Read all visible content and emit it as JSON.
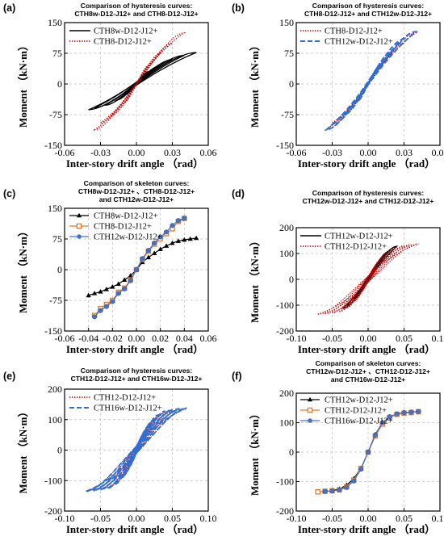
{
  "figure": {
    "panels": [
      {
        "id": "a",
        "label": "(a)",
        "title": [
          "Comparison of hysteresis curves:",
          "CTH8w-D12-J12+ and CTH8-D12-J12+"
        ]
      },
      {
        "id": "b",
        "label": "(b)",
        "title": [
          "Comparison of hysteresis curves:",
          "CTH8-D12-J12+ and CTH12w-D12-J12+"
        ]
      },
      {
        "id": "c",
        "label": "(c)",
        "title": [
          "Comparison of skeleton curves:",
          "CTH8w-D12-J12+ 、CTH8-D12-J12+",
          "and CTH12w-D12-J12+"
        ]
      },
      {
        "id": "d",
        "label": "(d)",
        "title": [
          "Comparison of hysteresis curves:",
          "CTH12w-D12-J12+ and CTH12-D12-J12+"
        ]
      },
      {
        "id": "e",
        "label": "(e)",
        "title": [
          "Comparison of hysteresis curves:",
          "CTH12-D12-J12+ and CTH16w-D12-J12+"
        ]
      },
      {
        "id": "f",
        "label": "(f)",
        "title": [
          "Comparison of skeleton curves:",
          "CTH12w-D12-J12+ 、CTH12-D12-J12+",
          "and CTH16w-D12-J12+"
        ]
      }
    ]
  },
  "chart_data": [
    {
      "panel": "a",
      "type": "line",
      "xlabel": "Inter-story drift angle （rad）",
      "ylabel": "Moment （kN·m）",
      "xlim": [
        -0.06,
        0.06
      ],
      "ylim": [
        -150,
        150
      ],
      "xticks": [
        -0.06,
        -0.03,
        0.0,
        0.03,
        0.06
      ],
      "xtick_labels": [
        "-0.06",
        "-0.03",
        "0.00",
        "0.03",
        "0.06"
      ],
      "yticks": [
        -150,
        -75,
        0,
        75,
        150
      ],
      "ytick_labels": [
        "-150",
        "-75",
        "0",
        "75",
        "150"
      ],
      "grid": true,
      "legend_position": "top-left",
      "series": [
        {
          "name": "CTH8w-D12-J12+",
          "color": "#000000",
          "style": "solid",
          "kind": "hysteresis",
          "loops": [
            {
              "x_max": 0.01,
              "x_min": -0.009,
              "y_max": 30,
              "y_min": -25,
              "pinch": 0.3
            },
            {
              "x_max": 0.02,
              "x_min": -0.017,
              "y_max": 45,
              "y_min": -40,
              "pinch": 0.3
            },
            {
              "x_max": 0.03,
              "x_min": -0.026,
              "y_max": 60,
              "y_min": -52,
              "pinch": 0.3
            },
            {
              "x_max": 0.04,
              "x_min": -0.035,
              "y_max": 70,
              "y_min": -58,
              "pinch": 0.3
            },
            {
              "x_max": 0.05,
              "x_min": -0.04,
              "y_max": 77,
              "y_min": -63,
              "pinch": 0.3
            }
          ]
        },
        {
          "name": "CTH8-D12-J12+",
          "color": "#c00000",
          "style": "dotted",
          "kind": "hysteresis",
          "loops": [
            {
              "x_max": 0.01,
              "x_min": -0.01,
              "y_max": 45,
              "y_min": -45,
              "pinch": 0.45
            },
            {
              "x_max": 0.02,
              "x_min": -0.02,
              "y_max": 75,
              "y_min": -75,
              "pinch": 0.45
            },
            {
              "x_max": 0.03,
              "x_min": -0.03,
              "y_max": 100,
              "y_min": -95,
              "pinch": 0.45
            },
            {
              "x_max": 0.04,
              "x_min": -0.035,
              "y_max": 125,
              "y_min": -112,
              "pinch": 0.45
            }
          ]
        }
      ]
    },
    {
      "panel": "b",
      "type": "line",
      "xlabel": "Inter-story drift angle （rad）",
      "ylabel": "Moment （kN·m）",
      "xlim": [
        -0.06,
        0.06
      ],
      "ylim": [
        -150,
        150
      ],
      "xticks": [
        -0.06,
        -0.03,
        0.0,
        0.03,
        0.06
      ],
      "xtick_labels": [
        "-0.06",
        "-0.03",
        "0.00",
        "0.03",
        "0.06"
      ],
      "yticks": [
        -150,
        -75,
        0,
        75,
        150
      ],
      "ytick_labels": [
        "-150",
        "-75",
        "0",
        "75",
        "150"
      ],
      "grid": true,
      "legend_position": "top-left",
      "series": [
        {
          "name": "CTH8-D12-J12+",
          "color": "#c00000",
          "style": "dotted",
          "kind": "hysteresis",
          "loops": [
            {
              "x_max": 0.01,
              "x_min": -0.01,
              "y_max": 45,
              "y_min": -45,
              "pinch": 0.45
            },
            {
              "x_max": 0.02,
              "x_min": -0.02,
              "y_max": 75,
              "y_min": -75,
              "pinch": 0.45
            },
            {
              "x_max": 0.03,
              "x_min": -0.03,
              "y_max": 100,
              "y_min": -95,
              "pinch": 0.45
            },
            {
              "x_max": 0.04,
              "x_min": -0.035,
              "y_max": 125,
              "y_min": -112,
              "pinch": 0.45
            }
          ]
        },
        {
          "name": "CTH12w-D12-J12+",
          "color": "#2e6fd6",
          "style": "dashed",
          "kind": "hysteresis",
          "loops": [
            {
              "x_max": 0.01,
              "x_min": -0.01,
              "y_max": 45,
              "y_min": -45,
              "pinch": 0.35
            },
            {
              "x_max": 0.02,
              "x_min": -0.02,
              "y_max": 80,
              "y_min": -75,
              "pinch": 0.35
            },
            {
              "x_max": 0.03,
              "x_min": -0.03,
              "y_max": 110,
              "y_min": -100,
              "pinch": 0.35
            },
            {
              "x_max": 0.04,
              "x_min": -0.035,
              "y_max": 128,
              "y_min": -112,
              "pinch": 0.35
            }
          ]
        }
      ]
    },
    {
      "panel": "c",
      "type": "line",
      "xlabel": "Inter-story drift angle （rad）",
      "ylabel": "Moment （kN·m）",
      "xlim": [
        -0.06,
        0.06
      ],
      "ylim": [
        -150,
        150
      ],
      "xticks": [
        -0.06,
        -0.04,
        -0.02,
        0.0,
        0.02,
        0.04,
        0.06
      ],
      "xtick_labels": [
        "-0.06",
        "-0.04",
        "-0.02",
        "0.00",
        "0.02",
        "0.04",
        "0.06"
      ],
      "yticks": [
        -150,
        -75,
        0,
        75,
        150
      ],
      "ytick_labels": [
        "-150",
        "-75",
        "0",
        "75",
        "150"
      ],
      "grid": true,
      "legend_position": "top-left",
      "series": [
        {
          "name": "CTH8w-D12-J12+",
          "color": "#000000",
          "marker": "triangle",
          "kind": "skeleton",
          "x": [
            -0.04,
            -0.035,
            -0.03,
            -0.025,
            -0.02,
            -0.015,
            -0.01,
            -0.005,
            0.0,
            0.005,
            0.01,
            0.015,
            0.02,
            0.025,
            0.03,
            0.035,
            0.04,
            0.045,
            0.05
          ],
          "y": [
            -63,
            -58,
            -54,
            -48,
            -42,
            -35,
            -25,
            -15,
            0,
            18,
            30,
            40,
            50,
            58,
            65,
            70,
            73,
            75,
            77
          ]
        },
        {
          "name": "CTH8-D12-J12+",
          "color": "#e07a2e",
          "marker": "square",
          "kind": "skeleton",
          "x": [
            -0.035,
            -0.03,
            -0.025,
            -0.02,
            -0.015,
            -0.01,
            -0.005,
            0.0,
            0.005,
            0.01,
            0.015,
            0.02,
            0.025,
            0.03,
            0.035,
            0.04
          ],
          "y": [
            -112,
            -95,
            -85,
            -75,
            -55,
            -45,
            -25,
            0,
            25,
            45,
            62,
            75,
            88,
            100,
            118,
            125
          ]
        },
        {
          "name": "CTH12w-D12-J12+",
          "color": "#4472c4",
          "marker": "circle",
          "kind": "skeleton",
          "x": [
            -0.035,
            -0.03,
            -0.025,
            -0.02,
            -0.015,
            -0.01,
            -0.005,
            0.0,
            0.005,
            0.01,
            0.015,
            0.02,
            0.025,
            0.03,
            0.035,
            0.04
          ],
          "y": [
            -115,
            -100,
            -90,
            -78,
            -58,
            -47,
            -27,
            0,
            27,
            47,
            65,
            80,
            92,
            108,
            120,
            126
          ]
        }
      ]
    },
    {
      "panel": "d",
      "type": "line",
      "xlabel": "Inter-story drift angle （rad）",
      "ylabel": "Moment （kN·m）",
      "xlim": [
        -0.1,
        0.1
      ],
      "ylim": [
        -200,
        200
      ],
      "xticks": [
        -0.1,
        -0.05,
        0.0,
        0.05,
        0.1
      ],
      "xtick_labels": [
        "-0.10",
        "-0.05",
        "0.00",
        "0.05",
        "0.10"
      ],
      "yticks": [
        -200,
        -100,
        0,
        100,
        200
      ],
      "ytick_labels": [
        "-200",
        "-100",
        "0",
        "100",
        "200"
      ],
      "grid": true,
      "legend_position": "top-left",
      "series": [
        {
          "name": "CTH12w-D12-J12+",
          "color": "#000000",
          "style": "solid",
          "kind": "hysteresis",
          "loops": [
            {
              "x_max": 0.01,
              "x_min": -0.01,
              "y_max": 45,
              "y_min": -45,
              "pinch": 0.3
            },
            {
              "x_max": 0.02,
              "x_min": -0.02,
              "y_max": 80,
              "y_min": -75,
              "pinch": 0.3
            },
            {
              "x_max": 0.03,
              "x_min": -0.03,
              "y_max": 110,
              "y_min": -100,
              "pinch": 0.3
            },
            {
              "x_max": 0.04,
              "x_min": -0.035,
              "y_max": 128,
              "y_min": -112,
              "pinch": 0.3
            }
          ]
        },
        {
          "name": "CTH12-D12-J12+",
          "color": "#c00000",
          "style": "dotted",
          "kind": "hysteresis",
          "loops": [
            {
              "x_max": 0.01,
              "x_min": -0.01,
              "y_max": 50,
              "y_min": -50,
              "pinch": 0.6
            },
            {
              "x_max": 0.02,
              "x_min": -0.02,
              "y_max": 85,
              "y_min": -85,
              "pinch": 0.6
            },
            {
              "x_max": 0.03,
              "x_min": -0.03,
              "y_max": 110,
              "y_min": -110,
              "pinch": 0.6
            },
            {
              "x_max": 0.04,
              "x_min": -0.04,
              "y_max": 125,
              "y_min": -125,
              "pinch": 0.6
            },
            {
              "x_max": 0.05,
              "x_min": -0.05,
              "y_max": 130,
              "y_min": -130,
              "pinch": 0.6
            },
            {
              "x_max": 0.06,
              "x_min": -0.06,
              "y_max": 135,
              "y_min": -133,
              "pinch": 0.6
            },
            {
              "x_max": 0.07,
              "x_min": -0.07,
              "y_max": 137,
              "y_min": -135,
              "pinch": 0.6
            }
          ]
        }
      ]
    },
    {
      "panel": "e",
      "type": "line",
      "xlabel": "Inter-story drift angle （rad）",
      "ylabel": "Moment （kN·m）",
      "xlim": [
        -0.1,
        0.1
      ],
      "ylim": [
        -200,
        200
      ],
      "xticks": [
        -0.1,
        -0.05,
        0.0,
        0.05,
        0.1
      ],
      "xtick_labels": [
        "-0.10",
        "-0.05",
        "0.00",
        "0.05",
        "0.10"
      ],
      "yticks": [
        -200,
        -100,
        0,
        100,
        200
      ],
      "ytick_labels": [
        "-200",
        "-100",
        "0",
        "100",
        "200"
      ],
      "grid": true,
      "legend_position": "top-left",
      "series": [
        {
          "name": "CTH12-D12-J12+",
          "color": "#c00000",
          "style": "dotted",
          "kind": "hysteresis",
          "loops": [
            {
              "x_max": 0.01,
              "x_min": -0.01,
              "y_max": 50,
              "y_min": -50,
              "pinch": 0.6
            },
            {
              "x_max": 0.02,
              "x_min": -0.02,
              "y_max": 85,
              "y_min": -85,
              "pinch": 0.6
            },
            {
              "x_max": 0.03,
              "x_min": -0.03,
              "y_max": 110,
              "y_min": -110,
              "pinch": 0.6
            },
            {
              "x_max": 0.04,
              "x_min": -0.04,
              "y_max": 125,
              "y_min": -125,
              "pinch": 0.6
            },
            {
              "x_max": 0.05,
              "x_min": -0.05,
              "y_max": 130,
              "y_min": -130,
              "pinch": 0.6
            },
            {
              "x_max": 0.06,
              "x_min": -0.06,
              "y_max": 135,
              "y_min": -133,
              "pinch": 0.6
            },
            {
              "x_max": 0.07,
              "x_min": -0.07,
              "y_max": 137,
              "y_min": -135,
              "pinch": 0.6
            }
          ]
        },
        {
          "name": "CTH16w-D12-J12+",
          "color": "#2e6fd6",
          "style": "dashed",
          "kind": "hysteresis",
          "loops": [
            {
              "x_max": 0.01,
              "x_min": -0.01,
              "y_max": 55,
              "y_min": -55,
              "pinch": 0.6
            },
            {
              "x_max": 0.02,
              "x_min": -0.02,
              "y_max": 90,
              "y_min": -90,
              "pinch": 0.6
            },
            {
              "x_max": 0.03,
              "x_min": -0.03,
              "y_max": 115,
              "y_min": -112,
              "pinch": 0.6
            },
            {
              "x_max": 0.04,
              "x_min": -0.04,
              "y_max": 128,
              "y_min": -125,
              "pinch": 0.6
            },
            {
              "x_max": 0.05,
              "x_min": -0.05,
              "y_max": 133,
              "y_min": -130,
              "pinch": 0.6
            },
            {
              "x_max": 0.06,
              "x_min": -0.06,
              "y_max": 136,
              "y_min": -133,
              "pinch": 0.6
            },
            {
              "x_max": 0.07,
              "x_min": -0.07,
              "y_max": 138,
              "y_min": -135,
              "pinch": 0.6
            }
          ]
        }
      ]
    },
    {
      "panel": "f",
      "type": "line",
      "xlabel": "Inter-story drift angle （rad）",
      "ylabel": "Moment （kN·m）",
      "xlim": [
        -0.1,
        0.1
      ],
      "ylim": [
        -200,
        200
      ],
      "xticks": [
        -0.1,
        -0.05,
        0.0,
        0.05,
        0.1
      ],
      "xtick_labels": [
        "-0.10",
        "-0.05",
        "0.00",
        "0.05",
        "0.10"
      ],
      "yticks": [
        -200,
        -100,
        0,
        100,
        200
      ],
      "ytick_labels": [
        "-200",
        "-100",
        "0",
        "100",
        "200"
      ],
      "grid": true,
      "legend_position": "top-left",
      "series": [
        {
          "name": "CTH12w-D12-J12+",
          "color": "#000000",
          "marker": "triangle",
          "kind": "skeleton",
          "x": [
            -0.05,
            -0.04,
            -0.03,
            -0.02,
            -0.01,
            0.0,
            0.01,
            0.02,
            0.03,
            0.04,
            0.05
          ],
          "y": [
            -130,
            -125,
            -112,
            -90,
            -55,
            0,
            60,
            100,
            120,
            128,
            132
          ]
        },
        {
          "name": "CTH12-D12-J12+",
          "color": "#e07a2e",
          "marker": "square",
          "kind": "skeleton",
          "x": [
            -0.07,
            -0.06,
            -0.05,
            -0.04,
            -0.03,
            -0.02,
            -0.01,
            0.0,
            0.01,
            0.02,
            0.03,
            0.04,
            0.05,
            0.06,
            0.07
          ],
          "y": [
            -135,
            -133,
            -131,
            -128,
            -118,
            -95,
            -55,
            0,
            55,
            95,
            118,
            128,
            132,
            134,
            137
          ]
        },
        {
          "name": "CTH16w-D12-J12+",
          "color": "#4472c4",
          "marker": "circle",
          "kind": "skeleton",
          "x": [
            -0.06,
            -0.05,
            -0.04,
            -0.03,
            -0.02,
            -0.01,
            0.0,
            0.01,
            0.02,
            0.03,
            0.04,
            0.05,
            0.06,
            0.07
          ],
          "y": [
            -133,
            -132,
            -128,
            -120,
            -98,
            -58,
            0,
            58,
            100,
            120,
            130,
            134,
            136,
            138
          ]
        }
      ]
    }
  ]
}
